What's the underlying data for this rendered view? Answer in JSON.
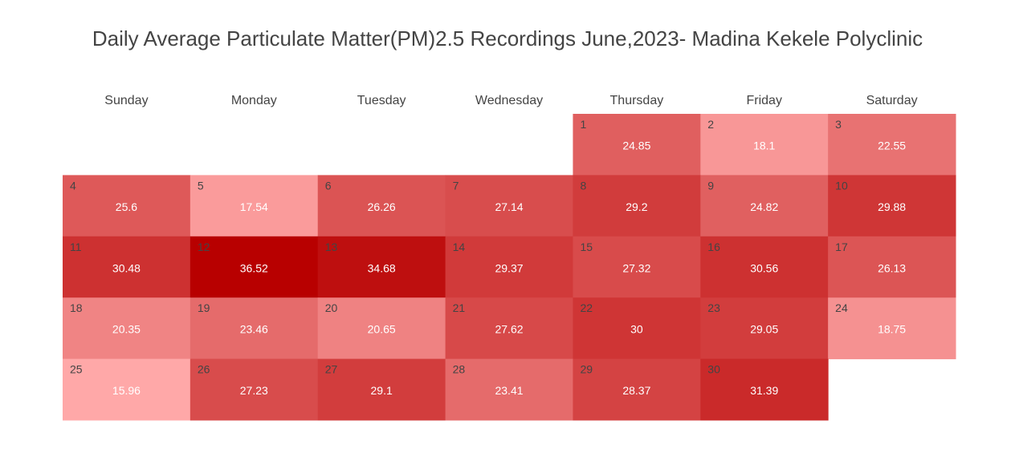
{
  "title": "Daily Average Particulate Matter(PM)2.5 Recordings June,2023- Madina Kekele Polyclinic",
  "chart_data": {
    "type": "heatmap",
    "title": "Daily Average Particulate Matter(PM)2.5 Recordings June,2023- Madina Kekele Polyclinic",
    "weekdays": [
      "Sunday",
      "Monday",
      "Tuesday",
      "Wednesday",
      "Thursday",
      "Friday",
      "Saturday"
    ],
    "first_weekday_index": 4,
    "days": [
      1,
      2,
      3,
      4,
      5,
      6,
      7,
      8,
      9,
      10,
      11,
      12,
      13,
      14,
      15,
      16,
      17,
      18,
      19,
      20,
      21,
      22,
      23,
      24,
      25,
      26,
      27,
      28,
      29,
      30
    ],
    "values": [
      24.85,
      18.1,
      22.55,
      25.6,
      17.54,
      26.26,
      27.14,
      29.2,
      24.82,
      29.88,
      30.48,
      36.52,
      34.68,
      29.37,
      27.32,
      30.56,
      26.13,
      20.35,
      23.46,
      20.65,
      27.62,
      30,
      29.05,
      18.75,
      15.96,
      27.23,
      29.1,
      23.41,
      28.37,
      31.39
    ],
    "colorscale": {
      "low": "#ffa8a8",
      "high": "#b80000"
    }
  }
}
